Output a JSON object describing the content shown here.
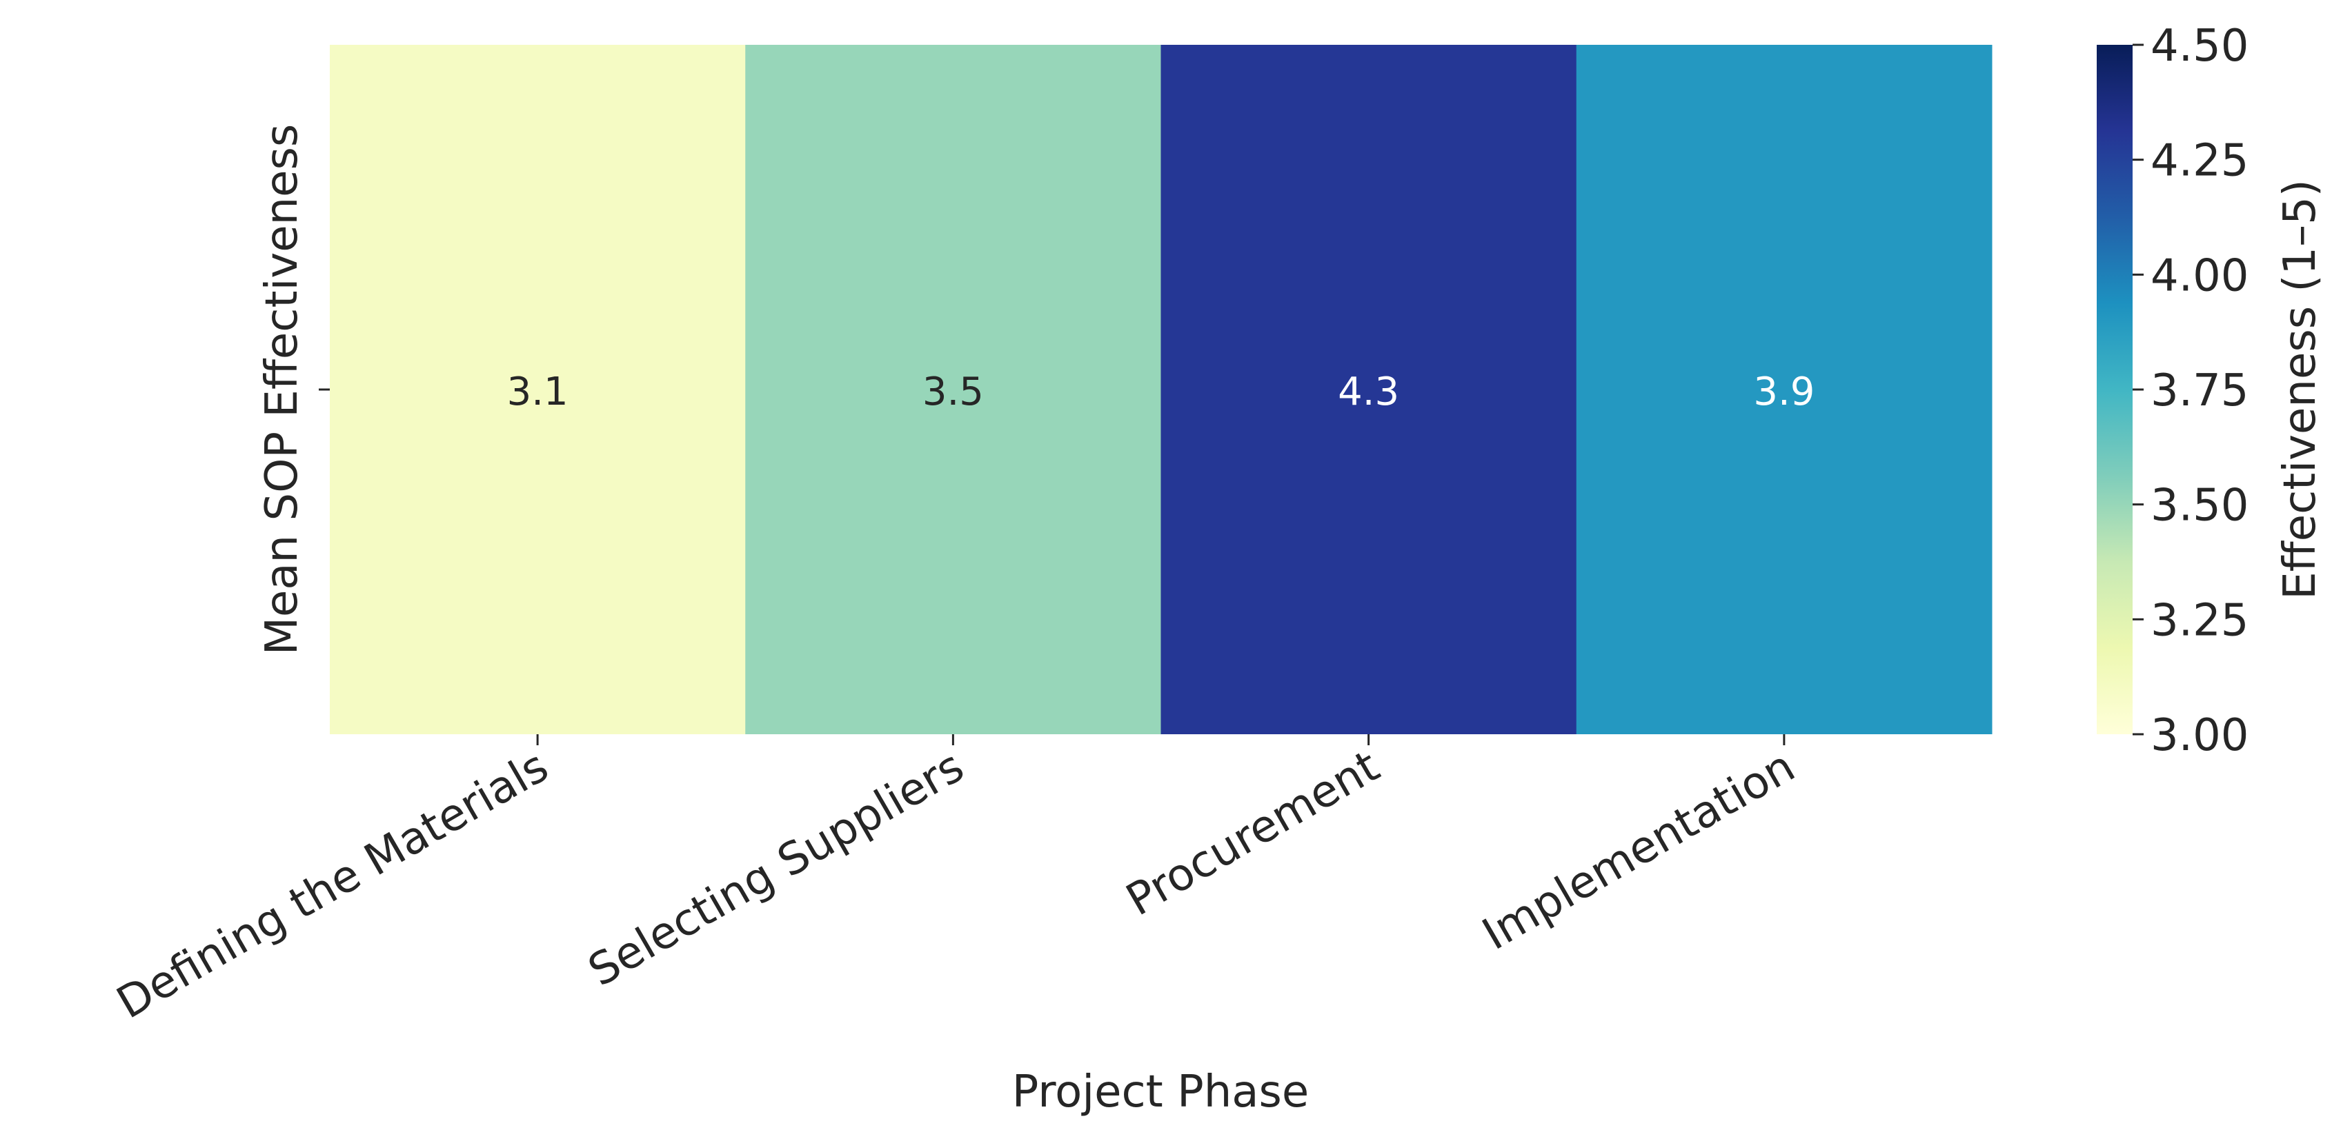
{
  "chart_data": {
    "type": "heatmap",
    "xlabel": "Project Phase",
    "ylabel": "Mean SOP Effectiveness",
    "categories": [
      "Defining the Materials",
      "Selecting Suppliers",
      "Procurement",
      "Implementation"
    ],
    "values": [
      3.1,
      3.5,
      4.3,
      3.9
    ],
    "colormap": [
      "#ffffd9",
      "#edf8b1",
      "#c7e9b4",
      "#7fcdbb",
      "#41b6c4",
      "#1d91c0",
      "#225ea8",
      "#253494",
      "#081d58"
    ],
    "colorbar_label": "Effectiveness (1–5)",
    "clim": [
      3.0,
      4.5
    ],
    "cticks": [
      {
        "value": 3.0,
        "label": "3.00"
      },
      {
        "value": 3.25,
        "label": "3.25"
      },
      {
        "value": 3.5,
        "label": "3.50"
      },
      {
        "value": 3.75,
        "label": "3.75"
      },
      {
        "value": 4.0,
        "label": "4.00"
      },
      {
        "value": 4.25,
        "label": "4.25"
      },
      {
        "value": 4.5,
        "label": "4.50"
      }
    ]
  }
}
